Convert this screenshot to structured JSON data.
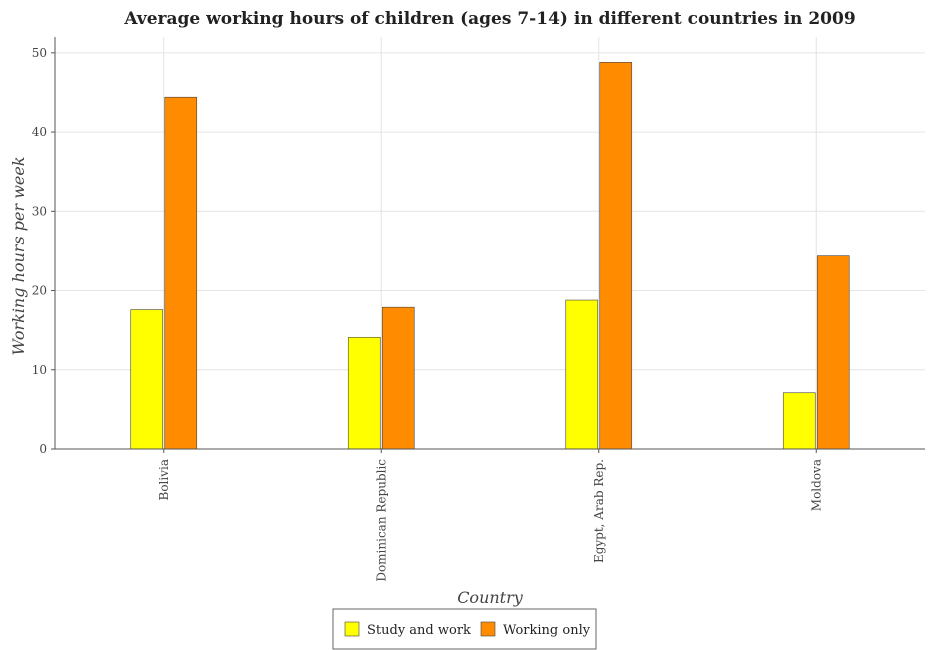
{
  "chart_data": {
    "type": "bar",
    "title": "Average working hours of children (ages 7-14) in different countries in 2009",
    "xlabel": "Country",
    "ylabel": "Working hours per week",
    "categories": [
      "Bolivia",
      "Dominican Republic",
      "Egypt, Arab Rep.",
      "Moldova"
    ],
    "series": [
      {
        "name": "Study and work",
        "color": "#ffff00",
        "values": [
          17.6,
          14.1,
          18.8,
          7.1
        ]
      },
      {
        "name": "Working only",
        "color": "#ff8c00",
        "values": [
          44.4,
          17.9,
          48.8,
          24.4
        ]
      }
    ],
    "ylim": [
      0,
      52
    ],
    "yticks": [
      0,
      10,
      20,
      30,
      40,
      50
    ],
    "grid": true,
    "legend_position": "bottom-center"
  }
}
